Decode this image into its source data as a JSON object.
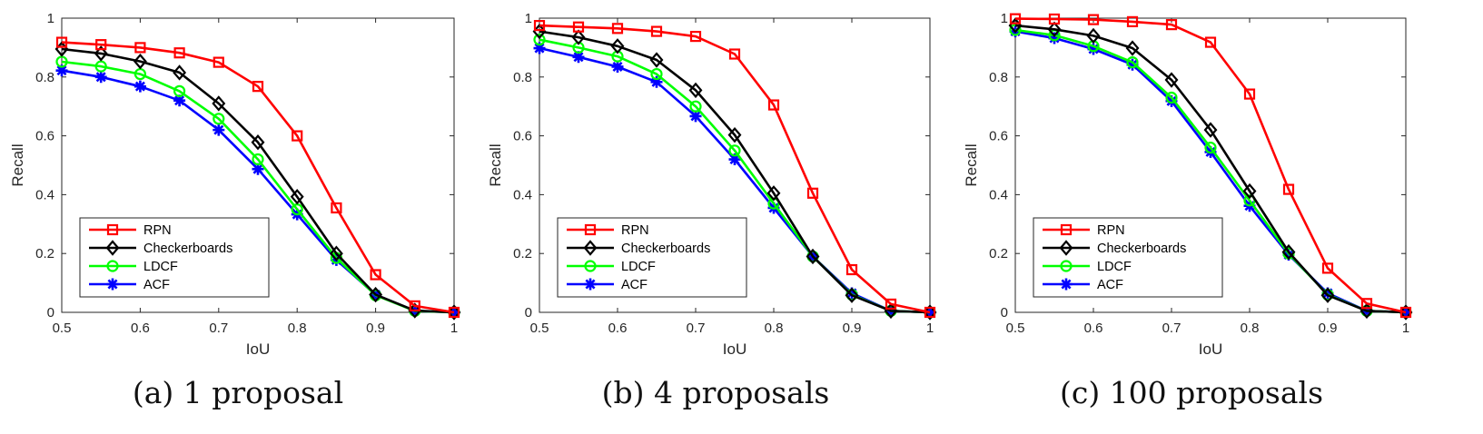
{
  "chart_data": [
    {
      "type": "line",
      "caption": "(a) 1 proposal",
      "xlabel": "IoU",
      "ylabel": "Recall",
      "xlim": [
        0.5,
        1
      ],
      "ylim": [
        0,
        1
      ],
      "x_ticks": [
        "0.5",
        "0.6",
        "0.7",
        "0.8",
        "0.9",
        "1"
      ],
      "y_ticks": [
        "0",
        "0.2",
        "0.4",
        "0.6",
        "0.8",
        "1"
      ],
      "grid": false,
      "legend_position": "lower-left",
      "x": [
        0.5,
        0.55,
        0.6,
        0.65,
        0.7,
        0.75,
        0.8,
        0.85,
        0.9,
        0.95,
        1.0
      ],
      "series": [
        {
          "name": "RPN",
          "color": "#ff0000",
          "marker": "square",
          "values": [
            0.918,
            0.91,
            0.9,
            0.882,
            0.85,
            0.768,
            0.6,
            0.355,
            0.128,
            0.022,
            0.0
          ]
        },
        {
          "name": "Checkerboards",
          "color": "#000000",
          "marker": "diamond",
          "values": [
            0.895,
            0.88,
            0.853,
            0.815,
            0.71,
            0.578,
            0.393,
            0.2,
            0.06,
            0.006,
            0.0
          ]
        },
        {
          "name": "LDCF",
          "color": "#00ff00",
          "marker": "circle",
          "values": [
            0.852,
            0.836,
            0.81,
            0.752,
            0.658,
            0.52,
            0.35,
            0.185,
            0.058,
            0.005,
            0.0
          ]
        },
        {
          "name": "ACF",
          "color": "#0000ff",
          "marker": "asterisk",
          "values": [
            0.822,
            0.8,
            0.768,
            0.72,
            0.62,
            0.487,
            0.333,
            0.178,
            0.06,
            0.005,
            0.0
          ]
        }
      ]
    },
    {
      "type": "line",
      "caption": "(b) 4 proposals",
      "xlabel": "IoU",
      "ylabel": "Recall",
      "xlim": [
        0.5,
        1
      ],
      "ylim": [
        0,
        1
      ],
      "x_ticks": [
        "0.5",
        "0.6",
        "0.7",
        "0.8",
        "0.9",
        "1"
      ],
      "y_ticks": [
        "0",
        "0.2",
        "0.4",
        "0.6",
        "0.8",
        "1"
      ],
      "grid": false,
      "legend_position": "lower-left",
      "x": [
        0.5,
        0.55,
        0.6,
        0.65,
        0.7,
        0.75,
        0.8,
        0.85,
        0.9,
        0.95,
        1.0
      ],
      "series": [
        {
          "name": "RPN",
          "color": "#ff0000",
          "marker": "square",
          "values": [
            0.975,
            0.97,
            0.965,
            0.955,
            0.938,
            0.878,
            0.705,
            0.405,
            0.145,
            0.028,
            0.0
          ]
        },
        {
          "name": "Checkerboards",
          "color": "#000000",
          "marker": "diamond",
          "values": [
            0.955,
            0.935,
            0.905,
            0.858,
            0.755,
            0.603,
            0.405,
            0.19,
            0.058,
            0.005,
            0.0
          ]
        },
        {
          "name": "LDCF",
          "color": "#00ff00",
          "marker": "circle",
          "values": [
            0.927,
            0.9,
            0.87,
            0.81,
            0.7,
            0.55,
            0.37,
            0.19,
            0.06,
            0.005,
            0.0
          ]
        },
        {
          "name": "ACF",
          "color": "#0000ff",
          "marker": "asterisk",
          "values": [
            0.898,
            0.868,
            0.835,
            0.783,
            0.667,
            0.52,
            0.355,
            0.19,
            0.065,
            0.005,
            0.0
          ]
        }
      ]
    },
    {
      "type": "line",
      "caption": "(c) 100 proposals",
      "xlabel": "IoU",
      "ylabel": "Recall",
      "xlim": [
        0.5,
        1
      ],
      "ylim": [
        0,
        1
      ],
      "x_ticks": [
        "0.5",
        "0.6",
        "0.7",
        "0.8",
        "0.9",
        "1"
      ],
      "y_ticks": [
        "0",
        "0.2",
        "0.4",
        "0.6",
        "0.8",
        "1"
      ],
      "grid": false,
      "legend_position": "lower-left",
      "x": [
        0.5,
        0.55,
        0.6,
        0.65,
        0.7,
        0.75,
        0.8,
        0.85,
        0.9,
        0.95,
        1.0
      ],
      "series": [
        {
          "name": "RPN",
          "color": "#ff0000",
          "marker": "square",
          "values": [
            0.998,
            0.997,
            0.995,
            0.988,
            0.978,
            0.918,
            0.742,
            0.418,
            0.15,
            0.03,
            0.0
          ]
        },
        {
          "name": "Checkerboards",
          "color": "#000000",
          "marker": "diamond",
          "values": [
            0.975,
            0.962,
            0.94,
            0.898,
            0.79,
            0.62,
            0.412,
            0.205,
            0.058,
            0.005,
            0.0
          ]
        },
        {
          "name": "LDCF",
          "color": "#00ff00",
          "marker": "circle",
          "values": [
            0.96,
            0.942,
            0.905,
            0.85,
            0.73,
            0.56,
            0.38,
            0.2,
            0.06,
            0.005,
            0.0
          ]
        },
        {
          "name": "ACF",
          "color": "#0000ff",
          "marker": "asterisk",
          "values": [
            0.955,
            0.932,
            0.895,
            0.842,
            0.718,
            0.545,
            0.362,
            0.196,
            0.065,
            0.005,
            0.0
          ]
        }
      ]
    }
  ]
}
